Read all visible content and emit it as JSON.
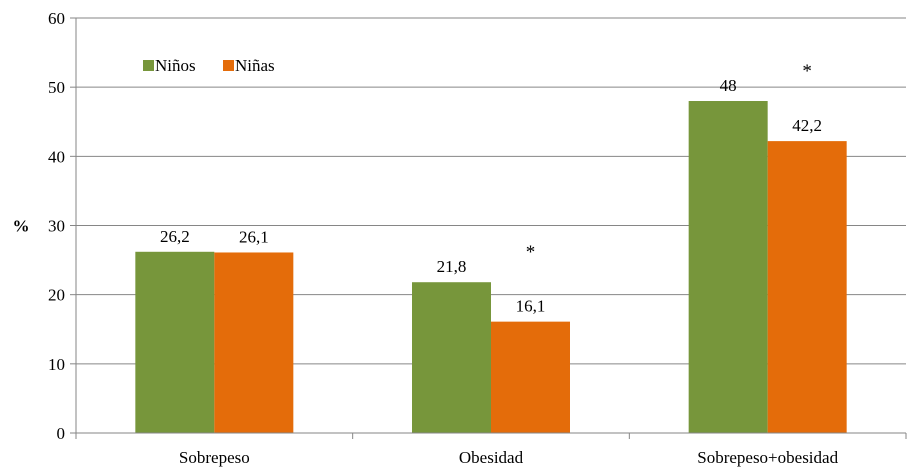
{
  "chart_data": {
    "type": "bar",
    "categories": [
      "Sobrepeso",
      "Obesidad",
      "Sobrepeso+obesidad"
    ],
    "series": [
      {
        "name": "Niños",
        "color": "#77963b",
        "values": [
          26.2,
          21.8,
          48
        ]
      },
      {
        "name": "Niñas",
        "color": "#e46c0a",
        "values": [
          26.1,
          16.1,
          42.2
        ]
      }
    ],
    "data_labels": [
      [
        "26,2",
        "21,8",
        "48"
      ],
      [
        "26,1",
        "16,1",
        "42,2"
      ]
    ],
    "significance_marker": "*",
    "significant_categories": [
      1,
      2
    ],
    "ylabel": "%",
    "ylim": [
      0,
      60
    ],
    "yticks": [
      0,
      10,
      20,
      30,
      40,
      50,
      60
    ],
    "grid": true,
    "legend_position": "top-left"
  }
}
